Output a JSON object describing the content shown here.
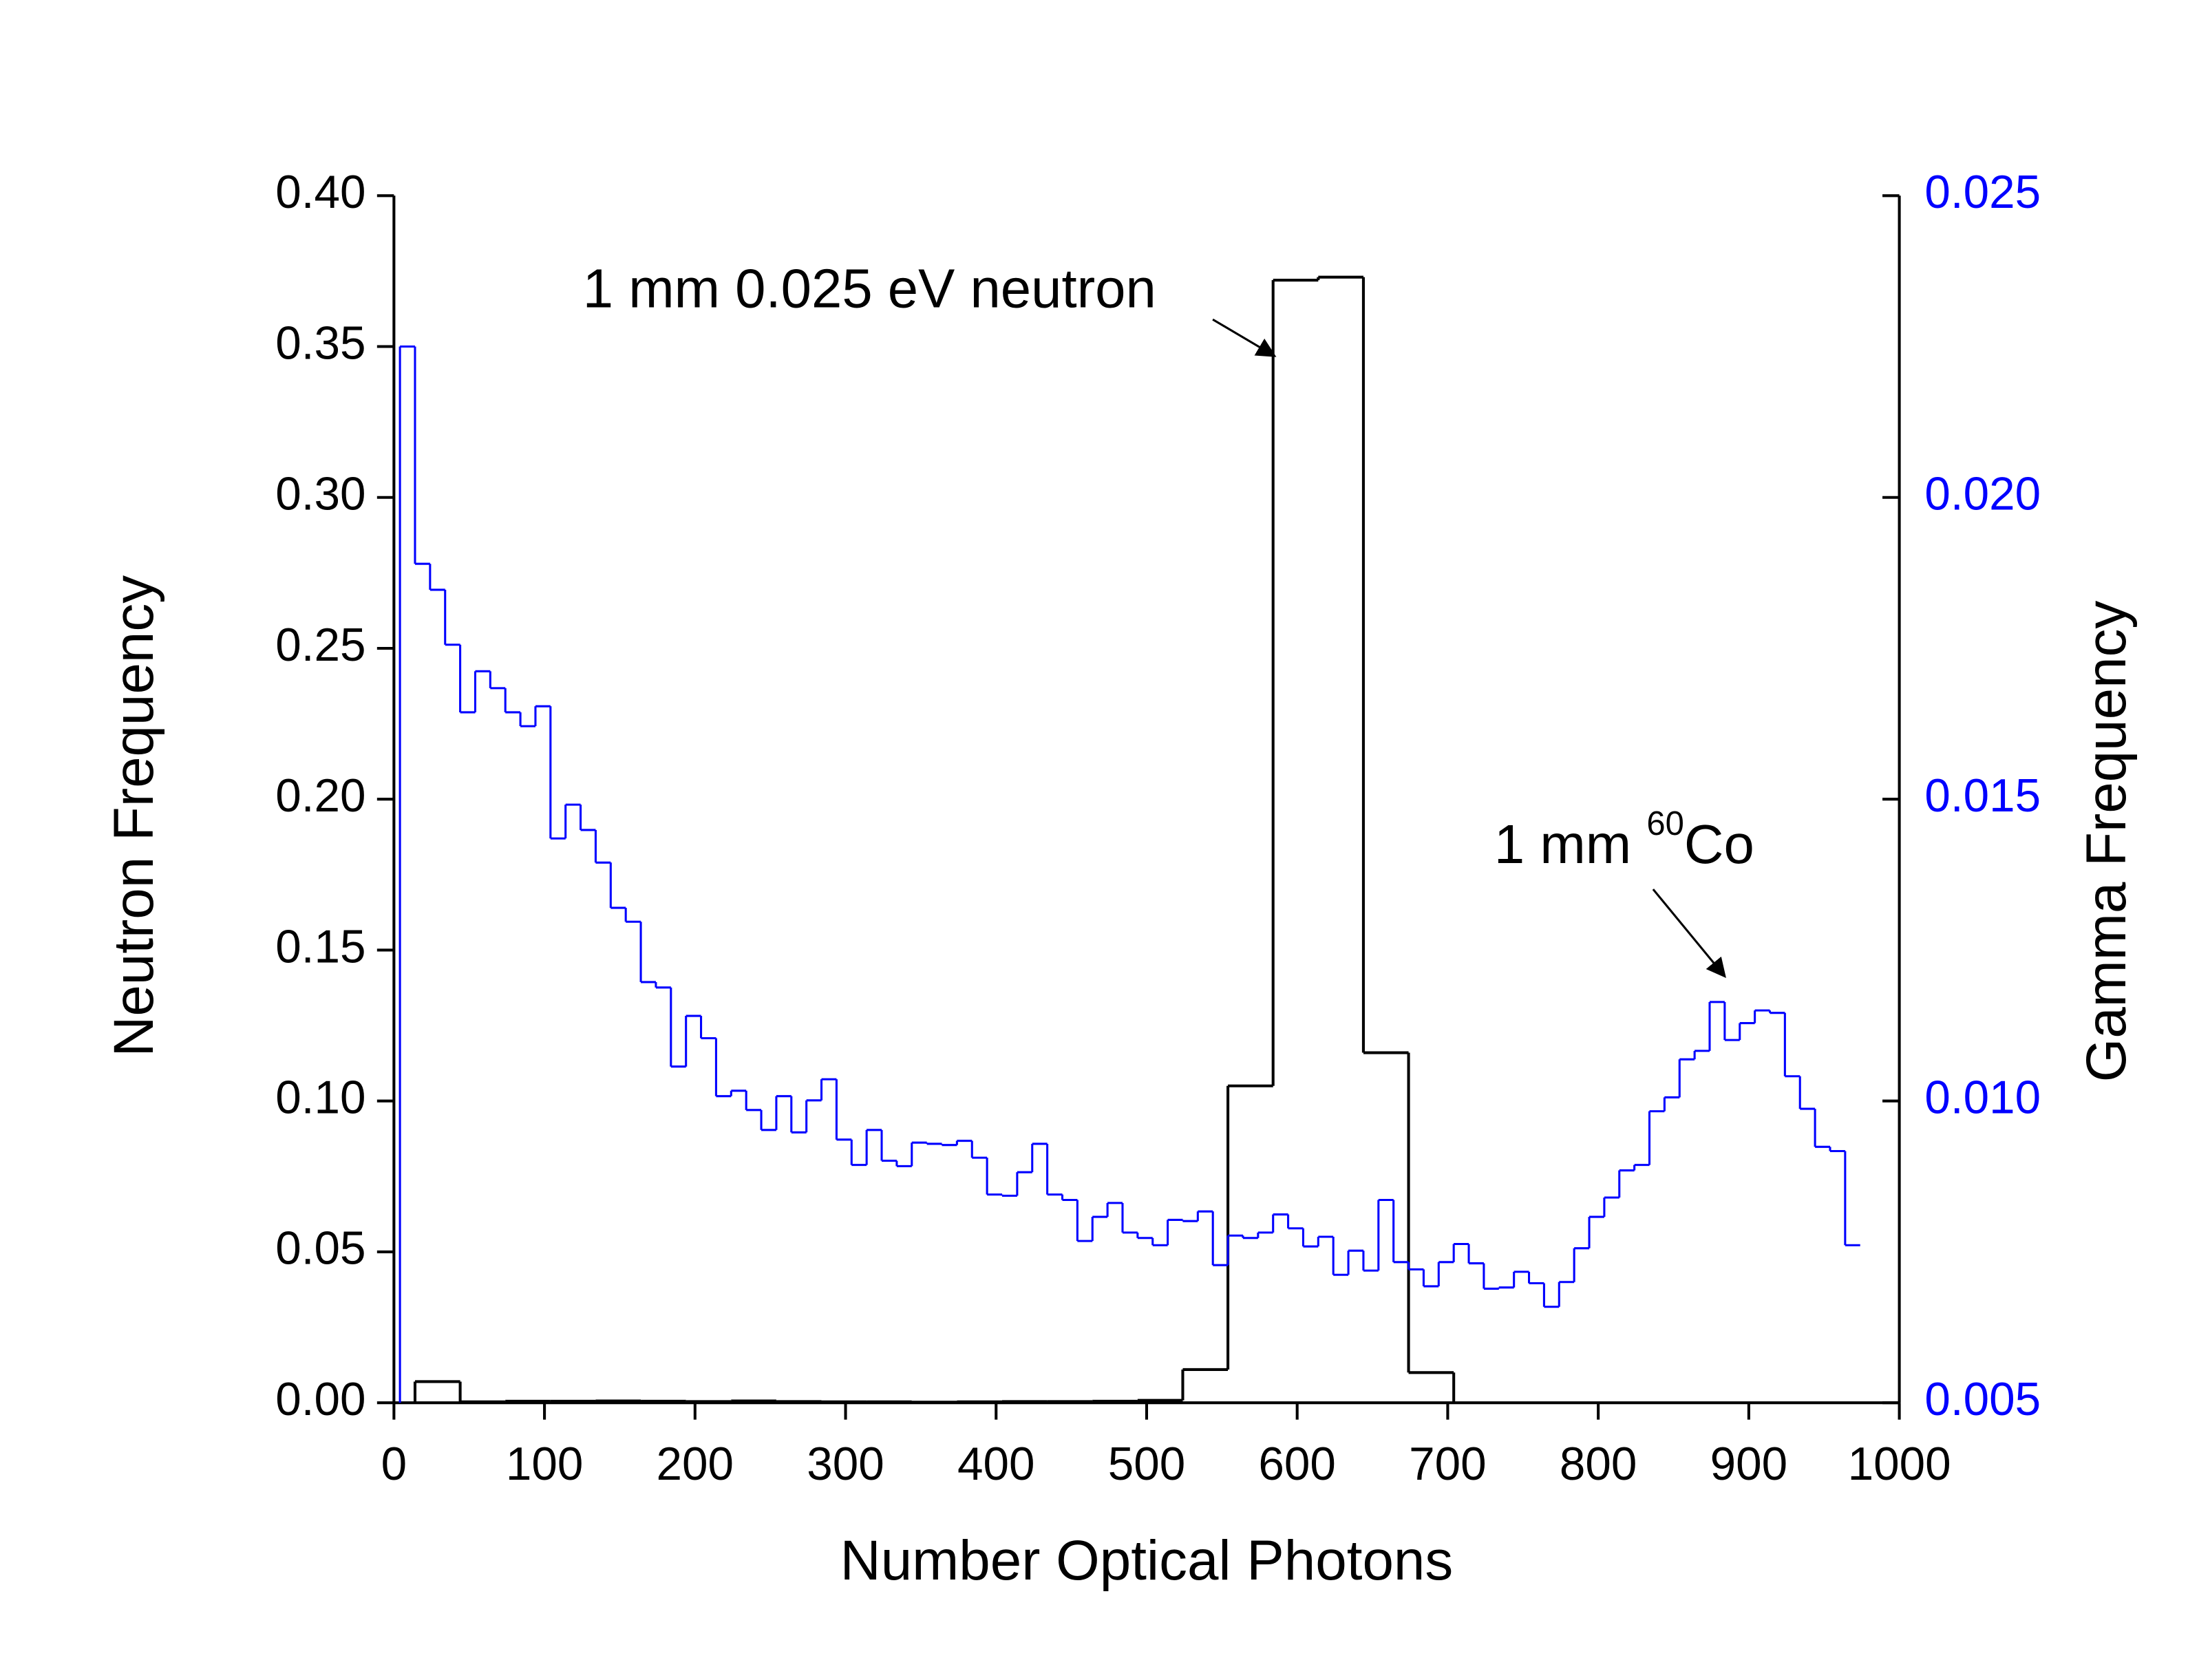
{
  "chart_data": {
    "type": "histogram",
    "xlabel": "Number Optical Photons",
    "ylabel": "Neutron Frequency",
    "y2label": "Gamma Frequency",
    "xlim": [
      0,
      1000
    ],
    "xticks": [
      0,
      100,
      200,
      300,
      400,
      500,
      600,
      700,
      800,
      900,
      1000
    ],
    "ylim": [
      0,
      0.4
    ],
    "yticks": [
      {
        "value": 0,
        "label": "0.00"
      },
      0.05,
      {
        "value": 0.1,
        "label": "0.10"
      },
      0.15,
      {
        "value": 0.2,
        "label": "0.20"
      },
      0.25,
      {
        "value": 0.3,
        "label": "0.30"
      },
      0.35,
      {
        "value": 0.4,
        "label": "0.40"
      }
    ],
    "y2lim": [
      0.005,
      0.025
    ],
    "y2ticks": [
      0.005,
      {
        "value": 0.01,
        "label": "0.010"
      },
      0.015,
      {
        "value": 0.02,
        "label": "0.020"
      },
      0.025
    ],
    "y2color": "#0000ff",
    "annotations": [
      {
        "text": "1 mm 0.025 eV neutron"
      },
      {
        "parts": [
          "1 mm ",
          "60",
          "Co"
        ]
      }
    ],
    "series": [
      {
        "color": "#000000",
        "bins": [
          14,
          44,
          74,
          104,
          134,
          164,
          194,
          224,
          254,
          284,
          314,
          344,
          374,
          404,
          434,
          464,
          494,
          524,
          554,
          584,
          614,
          644,
          674,
          704
        ],
        "values": [
          0.007,
          0.0003,
          0.0005,
          0.0005,
          0.0006,
          0.0005,
          0.0004,
          0.0006,
          0.0004,
          0.0003,
          0.0003,
          0.0002,
          0.0003,
          0.0004,
          0.0004,
          0.0005,
          0.0008,
          0.011,
          0.105,
          0.372,
          0.373,
          0.116,
          0.01
        ]
      },
      {
        "color": "#0000ff",
        "axis": "y2",
        "bins": [
          4,
          14,
          24,
          34,
          44,
          54,
          64,
          74,
          84,
          94,
          104,
          114,
          124,
          134,
          144,
          154,
          164,
          174,
          184,
          194,
          204,
          214,
          224,
          234,
          244,
          254,
          264,
          274,
          284,
          294,
          304,
          314,
          324,
          334,
          344,
          354,
          364,
          374,
          384,
          394,
          404,
          414,
          424,
          434,
          444,
          454,
          464,
          474,
          484,
          494,
          504,
          514,
          524,
          534,
          544,
          554,
          564,
          574,
          584,
          594,
          604,
          614,
          624,
          634,
          644,
          654,
          664,
          674,
          684,
          694,
          704,
          714,
          724,
          734,
          744,
          754,
          764,
          774,
          784,
          794,
          804,
          814,
          824,
          834,
          844,
          854,
          864,
          874,
          884,
          894,
          904,
          914,
          924,
          934,
          944,
          954,
          964,
          974
        ],
        "values": [
          0.0225,
          0.0189,
          0.01847,
          0.01756,
          0.01644,
          0.01712,
          0.01684,
          0.01644,
          0.01621,
          0.01654,
          0.01435,
          0.01491,
          0.01449,
          0.01395,
          0.0132,
          0.01297,
          0.01197,
          0.01188,
          0.01057,
          0.01141,
          0.01104,
          0.01008,
          0.01017,
          0.00985,
          0.00952,
          0.01008,
          0.00948,
          0.01001,
          0.01036,
          0.00936,
          0.00894,
          0.00952,
          0.00901,
          0.00892,
          0.00931,
          0.00929,
          0.00927,
          0.00934,
          0.00906,
          0.00845,
          0.00843,
          0.00882,
          0.00929,
          0.00845,
          0.00836,
          0.00768,
          0.00808,
          0.00831,
          0.00782,
          0.00773,
          0.00761,
          0.00803,
          0.00801,
          0.00817,
          0.00728,
          0.00777,
          0.00773,
          0.00782,
          0.00812,
          0.00789,
          0.00759,
          0.00775,
          0.00712,
          0.00752,
          0.00719,
          0.00836,
          0.00733,
          0.00721,
          0.00693,
          0.00733,
          0.00763,
          0.00731,
          0.00689,
          0.00691,
          0.00717,
          0.00698,
          0.00659,
          0.007,
          0.00756,
          0.00808,
          0.0084,
          0.00885,
          0.00894,
          0.00983,
          0.01006,
          0.01069,
          0.01083,
          0.01164,
          0.01101,
          0.01129,
          0.0115,
          0.01146,
          0.01041,
          0.00987,
          0.00924,
          0.00917,
          0.00761
        ]
      }
    ]
  }
}
